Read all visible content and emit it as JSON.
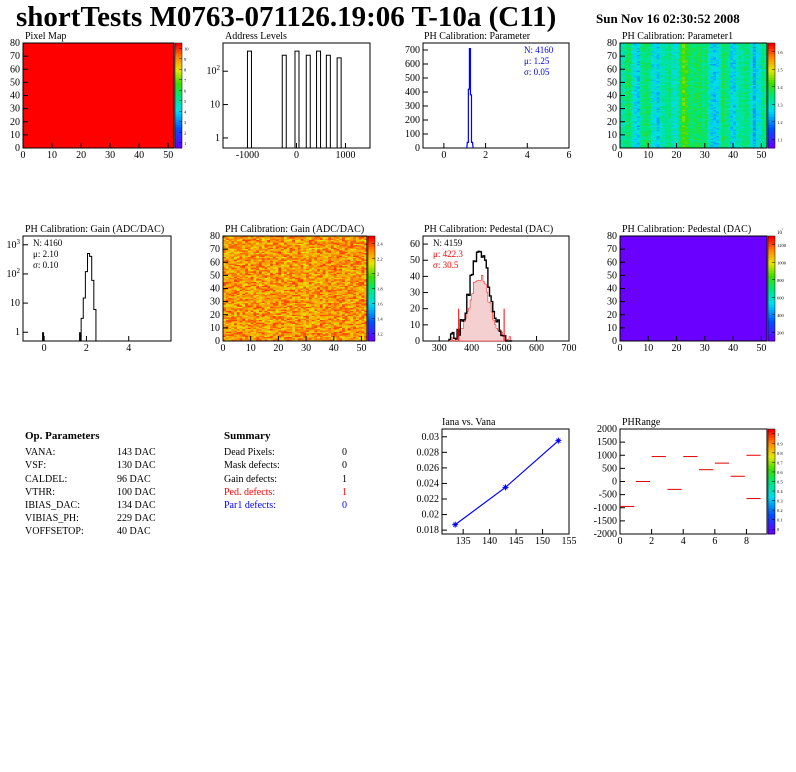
{
  "header": {
    "title": "shortTests M0763-071126.19:06 T-10a (C11)",
    "date": "Sun Nov 16 02:30:52 2008"
  },
  "colors": {
    "accent_blue": "#0000ff",
    "accent_red": "#ff0000",
    "plot_purple": "#6a00ff"
  },
  "panels": {
    "p1": {
      "title": "Pixel Map"
    },
    "p2": {
      "title": "Address Levels"
    },
    "p3": {
      "title": "PH Calibration: Parameter"
    },
    "p4": {
      "title": "PH Calibration: Parameter1"
    },
    "p5": {
      "title": "PH Calibration: Gain (ADC/DAC)"
    },
    "p6": {
      "title": "PH Calibration: Gain (ADC/DAC)"
    },
    "p7": {
      "title": "PH Calibration: Pedestal (DAC)"
    },
    "p8": {
      "title": "PH Calibration: Pedestal (DAC)"
    },
    "p10": {
      "title": "Iana vs. Vana"
    },
    "p11": {
      "title": "PHRange"
    }
  },
  "stats": {
    "p3": {
      "n": "N: 4160",
      "mu": "μ: 1.25",
      "sigma": "σ: 0.05"
    },
    "p5": {
      "n": "N: 4160",
      "mu": "μ: 2.10",
      "sigma": "σ: 0.10"
    },
    "p7": {
      "n": "N: 4159",
      "mu": "μ: 422.3",
      "sigma": "σ: 30.5"
    }
  },
  "op_params": {
    "title": "Op. Parameters",
    "rows": [
      {
        "label": "VANA:",
        "value": "143 DAC"
      },
      {
        "label": "VSF:",
        "value": "130 DAC"
      },
      {
        "label": "CALDEL:",
        "value": "96 DAC"
      },
      {
        "label": "VTHR:",
        "value": "100 DAC"
      },
      {
        "label": "IBIAS_DAC:",
        "value": "134 DAC"
      },
      {
        "label": "VIBIAS_PH:",
        "value": "229 DAC"
      },
      {
        "label": "VOFFSETOP:",
        "value": "40 DAC"
      }
    ]
  },
  "summary": {
    "title": "Summary",
    "rows": [
      {
        "label": "Dead Pixels:",
        "value": "0"
      },
      {
        "label": "Mask defects:",
        "value": "0"
      },
      {
        "label": "Gain defects:",
        "value": "1"
      },
      {
        "label": "Ped. defects:",
        "value": "1"
      },
      {
        "label": "Par1 defects:",
        "value": "0"
      }
    ]
  },
  "chart_data": [
    {
      "type": "heatmap",
      "title": "Pixel Map",
      "xlim": [
        0,
        52
      ],
      "ylim": [
        0,
        80
      ],
      "x_ticks": [
        "0",
        "10",
        "20",
        "30",
        "40",
        "50"
      ],
      "y_ticks": [
        "0",
        "10",
        "20",
        "30",
        "40",
        "50",
        "60",
        "70",
        "80"
      ],
      "colorbar_ticks": [
        "1",
        "2",
        "3",
        "4",
        "5",
        "6",
        "7",
        "8",
        "9",
        "10"
      ],
      "uniform_value": 10
    },
    {
      "type": "bar",
      "title": "Address Levels",
      "xlim": [
        -1500,
        1500
      ],
      "ylim": [
        0.5,
        700
      ],
      "log_y": true,
      "x_ticks": [
        "-1000",
        "0",
        "1000"
      ],
      "y_ticks": [
        "1",
        "10",
        "10^2"
      ],
      "peaks": [
        {
          "x": -960,
          "y": 400
        },
        {
          "x": -250,
          "y": 300
        },
        {
          "x": 10,
          "y": 400
        },
        {
          "x": 240,
          "y": 300
        },
        {
          "x": 450,
          "y": 400
        },
        {
          "x": 650,
          "y": 300
        },
        {
          "x": 870,
          "y": 250
        }
      ]
    },
    {
      "type": "bar",
      "title": "PH Calibration: Parameter",
      "xlim": [
        -1,
        6
      ],
      "ylim": [
        0,
        750
      ],
      "x_ticks": [
        "0",
        "2",
        "4",
        "6"
      ],
      "y_ticks": [
        "0",
        "100",
        "200",
        "300",
        "400",
        "500",
        "600",
        "700"
      ],
      "bins": [
        {
          "x": 1.15,
          "y": 40
        },
        {
          "x": 1.2,
          "y": 420
        },
        {
          "x": 1.25,
          "y": 710
        },
        {
          "x": 1.3,
          "y": 380
        },
        {
          "x": 1.35,
          "y": 40
        }
      ]
    },
    {
      "type": "heatmap",
      "title": "PH Calibration: Parameter1",
      "xlim": [
        0,
        52
      ],
      "ylim": [
        0,
        80
      ],
      "x_ticks": [
        "0",
        "10",
        "20",
        "30",
        "40",
        "50"
      ],
      "y_ticks": [
        "0",
        "10",
        "20",
        "30",
        "40",
        "50",
        "60",
        "70",
        "80"
      ],
      "colorbar_ticks": [
        "1.1",
        "1.2",
        "1.3",
        "1.4",
        "1.5",
        "1.6"
      ]
    },
    {
      "type": "bar",
      "title": "PH Calibration: Gain (ADC/DAC)",
      "xlim": [
        -1,
        6
      ],
      "ylim": [
        0.5,
        2000
      ],
      "log_y": true,
      "x_ticks": [
        "0",
        "2",
        "4"
      ],
      "y_ticks": [
        "1",
        "10",
        "10^2",
        "10^3"
      ],
      "bins": [
        {
          "x": 1.8,
          "y": 3
        },
        {
          "x": 1.9,
          "y": 15
        },
        {
          "x": 2.0,
          "y": 120
        },
        {
          "x": 2.1,
          "y": 500
        },
        {
          "x": 2.2,
          "y": 400
        },
        {
          "x": 2.3,
          "y": 60
        },
        {
          "x": 2.4,
          "y": 6
        }
      ]
    },
    {
      "type": "heatmap",
      "title": "PH Calibration: Gain (ADC/DAC)",
      "xlim": [
        0,
        52
      ],
      "ylim": [
        0,
        80
      ],
      "x_ticks": [
        "0",
        "10",
        "20",
        "30",
        "40",
        "50"
      ],
      "y_ticks": [
        "0",
        "10",
        "20",
        "30",
        "40",
        "50",
        "60",
        "70",
        "80"
      ],
      "colorbar_ticks": [
        "1.2",
        "1.4",
        "1.6",
        "1.8",
        "2",
        "2.2",
        "2.4"
      ]
    },
    {
      "type": "bar",
      "title": "PH Calibration: Pedestal (DAC)",
      "xlim": [
        250,
        700
      ],
      "ylim": [
        0,
        65
      ],
      "x_ticks": [
        "300",
        "400",
        "500",
        "600",
        "700"
      ],
      "y_ticks": [
        "0",
        "10",
        "20",
        "30",
        "40",
        "50",
        "60"
      ],
      "mean": 422.3,
      "sigma": 30.5,
      "cut_lines": [
        360,
        500
      ]
    },
    {
      "type": "heatmap",
      "title": "PH Calibration: Pedestal (DAC)",
      "xlim": [
        0,
        52
      ],
      "ylim": [
        0,
        80
      ],
      "x_ticks": [
        "0",
        "10",
        "20",
        "30",
        "40",
        "50"
      ],
      "y_ticks": [
        "0",
        "10",
        "20",
        "30",
        "40",
        "50",
        "60",
        "70",
        "80"
      ],
      "colorbar_ticks": [
        "200",
        "400",
        "600",
        "800",
        "1000",
        "1200"
      ],
      "colorbar_exponent": "10^3"
    },
    {
      "type": "line",
      "title": "Iana vs. Vana",
      "xlim": [
        131,
        155
      ],
      "ylim": [
        0.0175,
        0.031
      ],
      "x_ticks": [
        "135",
        "140",
        "145",
        "150",
        "155"
      ],
      "y_ticks": [
        "0.018",
        "0.02",
        "0.022",
        "0.024",
        "0.026",
        "0.028",
        "0.03"
      ],
      "points": [
        {
          "x": 133.5,
          "y": 0.0187
        },
        {
          "x": 143,
          "y": 0.0235
        },
        {
          "x": 153,
          "y": 0.0295
        }
      ]
    },
    {
      "type": "scatter",
      "title": "PHRange",
      "xlim": [
        0,
        9.3
      ],
      "ylim": [
        -2000,
        2000
      ],
      "x_ticks": [
        "0",
        "2",
        "4",
        "6",
        "8"
      ],
      "y_ticks": [
        "-2000",
        "-1500",
        "-1000",
        "-500",
        "0",
        "500",
        "1000",
        "1500",
        "2000"
      ],
      "colorbar_ticks": [
        "0",
        "0.1",
        "0.2",
        "0.3",
        "0.4",
        "0.5",
        "0.6",
        "0.7",
        "0.8",
        "0.9",
        "1"
      ],
      "segments": [
        {
          "x": 0,
          "y": -950
        },
        {
          "x": 1,
          "y": 0
        },
        {
          "x": 2,
          "y": 950
        },
        {
          "x": 3,
          "y": -300
        },
        {
          "x": 4,
          "y": 950
        },
        {
          "x": 5,
          "y": 450
        },
        {
          "x": 6,
          "y": 700
        },
        {
          "x": 7,
          "y": 200
        },
        {
          "x": 8,
          "y": 1000
        },
        {
          "x": 8,
          "y": -650
        }
      ]
    }
  ]
}
